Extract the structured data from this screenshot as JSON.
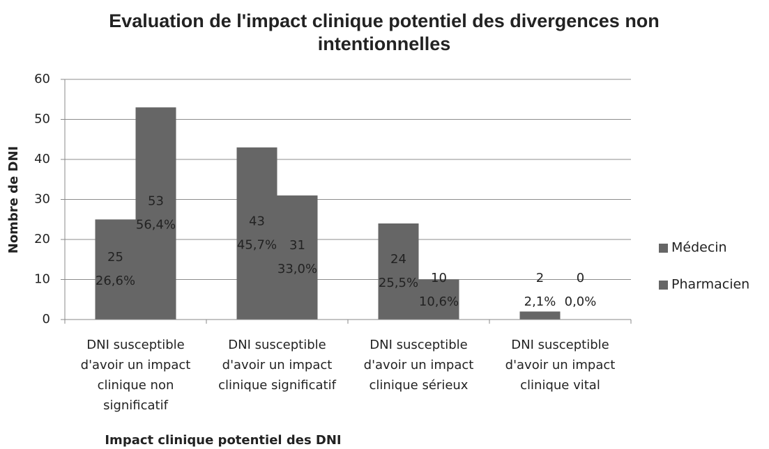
{
  "chart_data": {
    "type": "bar",
    "title": "Evaluation de l'impact clinique potentiel des divergences non intentionnelles",
    "x_label": "Impact clinique potentiel des DNI",
    "y_label": "Nombre de DNI",
    "categories": [
      "DNI susceptible d'avoir un impact clinique non significatif",
      "DNI susceptible d'avoir un impact clinique significatif",
      "DNI susceptible d'avoir un impact clinique sérieux",
      "DNI susceptible d'avoir un impact clinique vital"
    ],
    "series": [
      {
        "name": "Médecin",
        "color": "#666666",
        "values": [
          25,
          43,
          24,
          2
        ],
        "percentages": [
          26.6,
          45.7,
          25.5,
          2.1
        ],
        "percentage_labels": [
          "26,6%",
          "45,7%",
          "25,5%",
          "2,1%"
        ]
      },
      {
        "name": "Pharmacien",
        "color": "#666666",
        "values": [
          53,
          31,
          10,
          0
        ],
        "percentages": [
          56.4,
          33.0,
          10.6,
          0.0
        ],
        "percentage_labels": [
          "56,4%",
          "33,0%",
          "10,6%",
          "0,0%"
        ]
      }
    ],
    "ylim": [
      0,
      60
    ],
    "yticks": [
      0,
      10,
      20,
      30,
      40,
      50,
      60
    ],
    "grid": true,
    "legend": "right"
  }
}
